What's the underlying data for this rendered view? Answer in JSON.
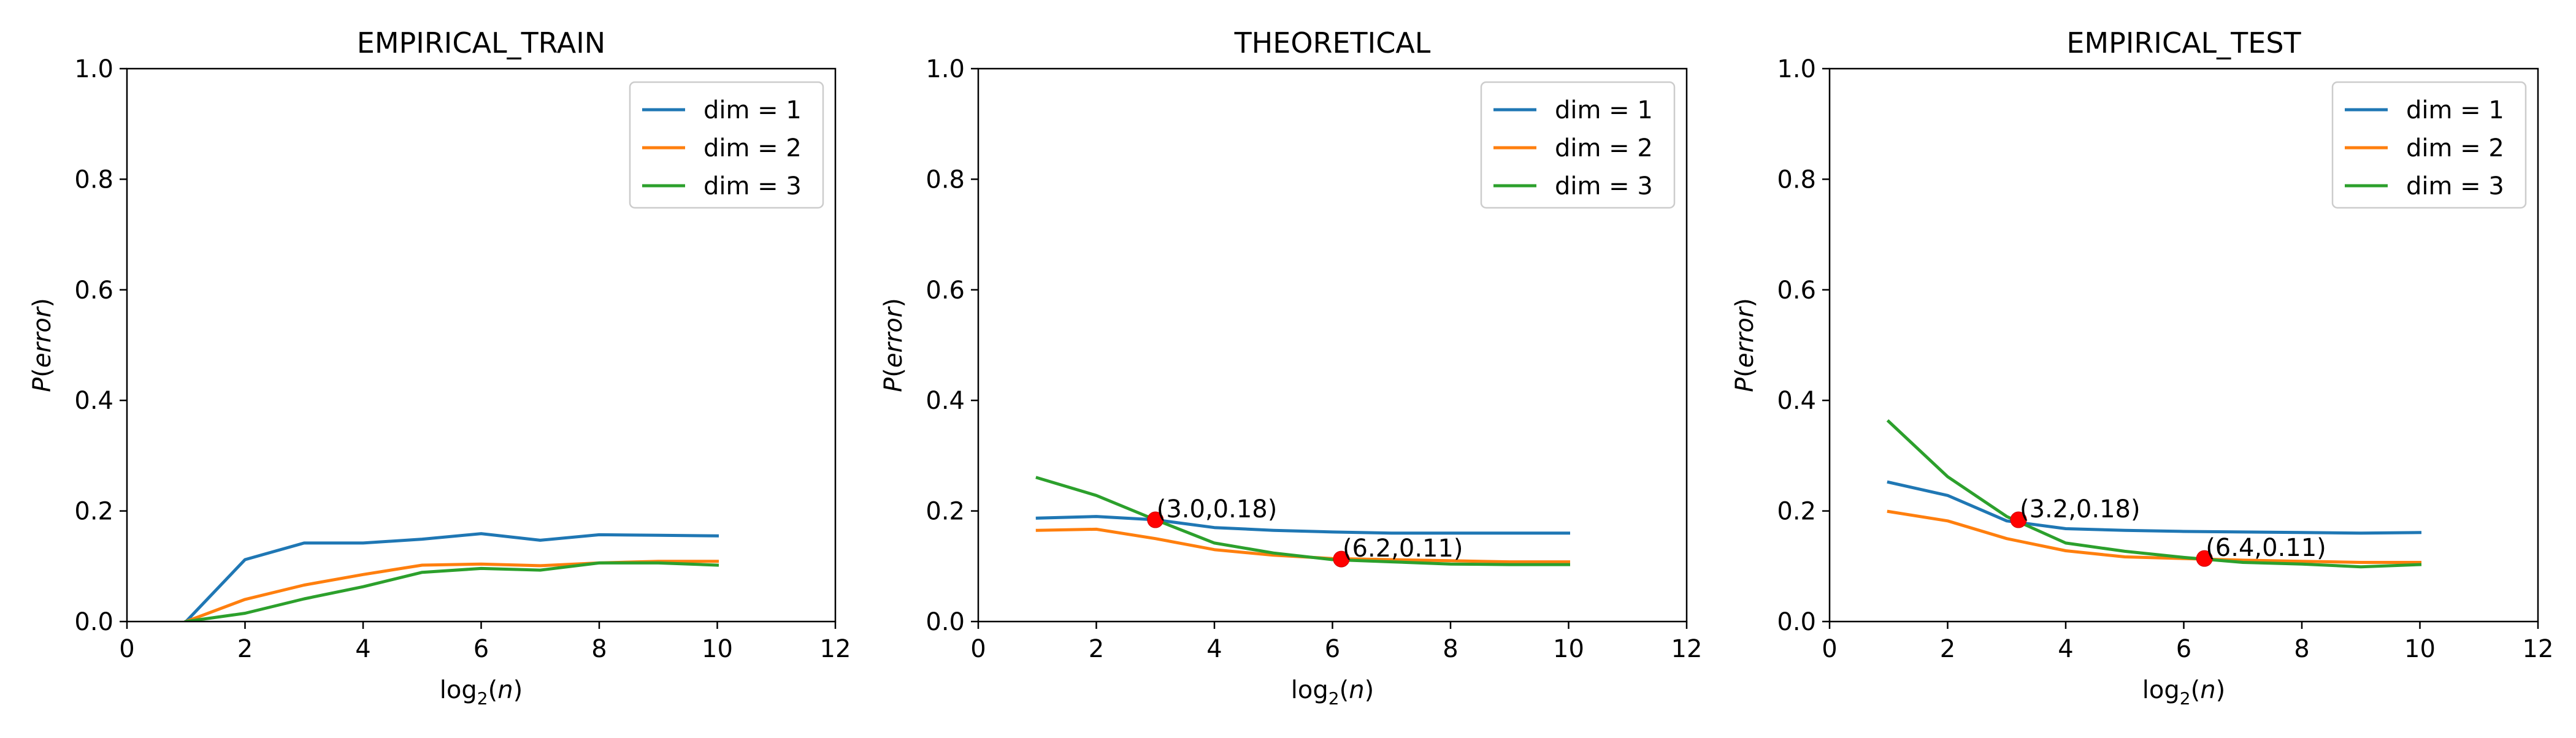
{
  "chart_data": [
    {
      "type": "line",
      "title": "EMPIRICAL_TRAIN",
      "xlabel_base": "log",
      "xlabel_sub": "2",
      "xlabel_arg": "n",
      "ylabel_func": "P",
      "ylabel_arg": "error",
      "xlim": [
        0,
        12
      ],
      "ylim": [
        0,
        1.0
      ],
      "xticks": [
        0,
        2,
        4,
        6,
        8,
        10,
        12
      ],
      "xtick_labels": [
        "0",
        "2",
        "4",
        "6",
        "8",
        "10",
        "12"
      ],
      "yticks": [
        0,
        0.2,
        0.4,
        0.6,
        0.8,
        1.0
      ],
      "ytick_labels": [
        "0.0",
        "0.2",
        "0.4",
        "0.6",
        "0.8",
        "1.0"
      ],
      "grid": false,
      "legend_position": "upper right",
      "x": [
        1,
        2,
        3,
        4,
        5,
        6,
        7,
        8,
        9,
        10
      ],
      "series": [
        {
          "name": "dim = 1",
          "color": "#1f77b4",
          "values": [
            0.0,
            0.112,
            0.142,
            0.142,
            0.149,
            0.159,
            0.147,
            0.157,
            0.156,
            0.155
          ]
        },
        {
          "name": "dim = 2",
          "color": "#ff7f0e",
          "values": [
            0.0,
            0.04,
            0.066,
            0.085,
            0.102,
            0.104,
            0.101,
            0.106,
            0.109,
            0.109
          ]
        },
        {
          "name": "dim = 3",
          "color": "#2ca02c",
          "values": [
            0.0,
            0.015,
            0.041,
            0.063,
            0.089,
            0.096,
            0.093,
            0.106,
            0.106,
            0.102
          ]
        }
      ],
      "markers": []
    },
    {
      "type": "line",
      "title": "THEORETICAL",
      "xlabel_base": "log",
      "xlabel_sub": "2",
      "xlabel_arg": "n",
      "ylabel_func": "P",
      "ylabel_arg": "error",
      "xlim": [
        0,
        12
      ],
      "ylim": [
        0,
        1.0
      ],
      "xticks": [
        0,
        2,
        4,
        6,
        8,
        10,
        12
      ],
      "xtick_labels": [
        "0",
        "2",
        "4",
        "6",
        "8",
        "10",
        "12"
      ],
      "yticks": [
        0,
        0.2,
        0.4,
        0.6,
        0.8,
        1.0
      ],
      "ytick_labels": [
        "0.0",
        "0.2",
        "0.4",
        "0.6",
        "0.8",
        "1.0"
      ],
      "grid": false,
      "legend_position": "upper right",
      "x": [
        1,
        2,
        3,
        4,
        5,
        6,
        7,
        8,
        9,
        10
      ],
      "series": [
        {
          "name": "dim = 1",
          "color": "#1f77b4",
          "values": [
            0.187,
            0.19,
            0.184,
            0.17,
            0.165,
            0.162,
            0.16,
            0.16,
            0.16,
            0.16
          ]
        },
        {
          "name": "dim = 2",
          "color": "#ff7f0e",
          "values": [
            0.165,
            0.167,
            0.15,
            0.13,
            0.12,
            0.114,
            0.112,
            0.11,
            0.108,
            0.108
          ]
        },
        {
          "name": "dim = 3",
          "color": "#2ca02c",
          "values": [
            0.26,
            0.228,
            0.184,
            0.142,
            0.124,
            0.112,
            0.108,
            0.104,
            0.103,
            0.103
          ]
        }
      ],
      "markers": [
        {
          "x": 3.0,
          "y": 0.184,
          "label": "(3.0,0.18)"
        },
        {
          "x": 6.15,
          "y": 0.113,
          "label": "(6.2,0.11)"
        }
      ]
    },
    {
      "type": "line",
      "title": "EMPIRICAL_TEST",
      "xlabel_base": "log",
      "xlabel_sub": "2",
      "xlabel_arg": "n",
      "ylabel_func": "P",
      "ylabel_arg": "error",
      "xlim": [
        0,
        12
      ],
      "ylim": [
        0,
        1.0
      ],
      "xticks": [
        0,
        2,
        4,
        6,
        8,
        10,
        12
      ],
      "xtick_labels": [
        "0",
        "2",
        "4",
        "6",
        "8",
        "10",
        "12"
      ],
      "yticks": [
        0,
        0.2,
        0.4,
        0.6,
        0.8,
        1.0
      ],
      "ytick_labels": [
        "0.0",
        "0.2",
        "0.4",
        "0.6",
        "0.8",
        "1.0"
      ],
      "grid": false,
      "legend_position": "upper right",
      "x": [
        1,
        2,
        3,
        4,
        5,
        6,
        7,
        8,
        9,
        10
      ],
      "series": [
        {
          "name": "dim = 1",
          "color": "#1f77b4",
          "values": [
            0.252,
            0.228,
            0.182,
            0.168,
            0.165,
            0.163,
            0.162,
            0.161,
            0.16,
            0.161
          ]
        },
        {
          "name": "dim = 2",
          "color": "#ff7f0e",
          "values": [
            0.199,
            0.182,
            0.15,
            0.128,
            0.117,
            0.114,
            0.111,
            0.109,
            0.107,
            0.107
          ]
        },
        {
          "name": "dim = 3",
          "color": "#2ca02c",
          "values": [
            0.362,
            0.262,
            0.19,
            0.142,
            0.127,
            0.116,
            0.107,
            0.104,
            0.099,
            0.103
          ]
        }
      ],
      "markers": [
        {
          "x": 3.2,
          "y": 0.184,
          "label": "(3.2,0.18)"
        },
        {
          "x": 6.35,
          "y": 0.114,
          "label": "(6.4,0.11)"
        }
      ]
    }
  ]
}
